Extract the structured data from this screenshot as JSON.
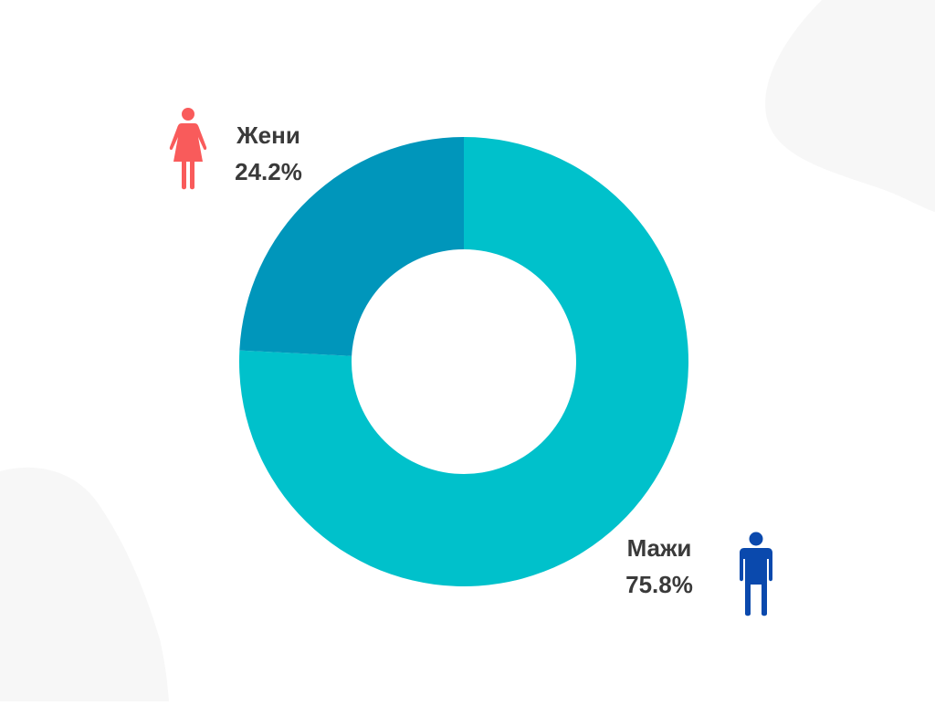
{
  "chart_data": {
    "type": "pie",
    "variant": "donut",
    "title": "",
    "slices": [
      {
        "label": "Мажи",
        "value": 75.8,
        "value_label": "75.8%",
        "color": "#00c1cb",
        "icon": "man-icon",
        "icon_color": "#0a49ad"
      },
      {
        "label": "Жени",
        "value": 24.2,
        "value_label": "24.2%",
        "color": "#0096bb",
        "icon": "woman-icon",
        "icon_color": "#f95b5b"
      }
    ]
  },
  "colors": {
    "background": "#ffffff",
    "decor_blob": "#f7f7f7",
    "label_text": "#3a3a3a"
  }
}
